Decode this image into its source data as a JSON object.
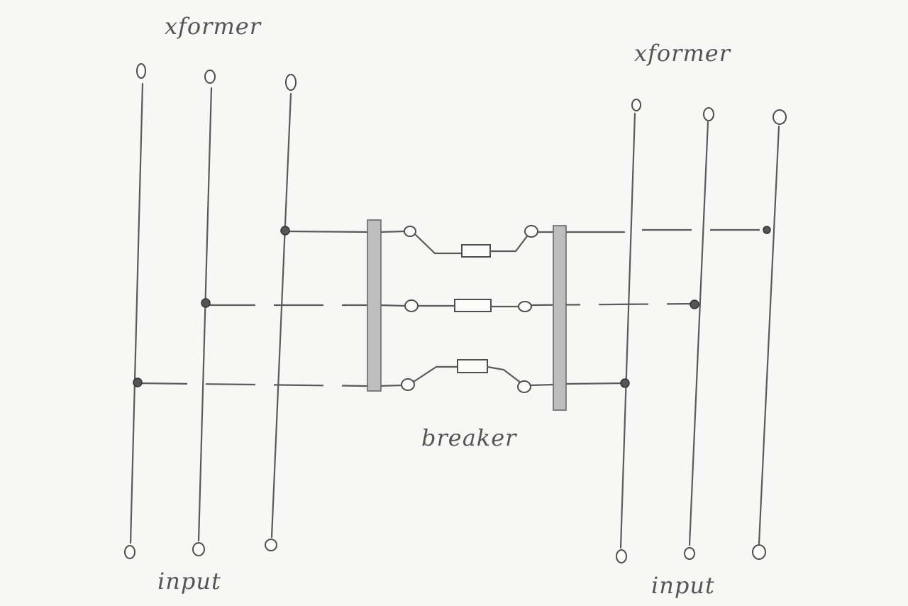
{
  "labels": {
    "left_top": "xformer",
    "right_top": "xformer",
    "center": "breaker",
    "left_bottom": "input",
    "right_bottom": "input"
  },
  "colors": {
    "ink": "#5a5a5a",
    "paper": "#f7f7f6",
    "hatch": "#bdbdbd"
  }
}
